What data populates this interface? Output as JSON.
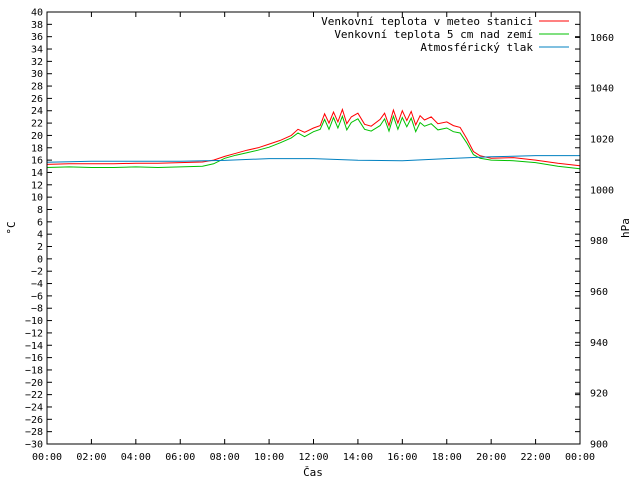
{
  "chart_data": {
    "type": "line",
    "xlabel": "Čas",
    "ylabel_left": "°C",
    "ylabel_right": "hPa",
    "x_ticks": [
      "00:00",
      "02:00",
      "04:00",
      "06:00",
      "08:00",
      "10:00",
      "12:00",
      "14:00",
      "16:00",
      "18:00",
      "20:00",
      "22:00",
      "00:00"
    ],
    "x_range_hours": [
      0,
      24
    ],
    "y_left_range": [
      -30,
      40
    ],
    "y_left_step": 2,
    "y_right_range": [
      900,
      1070
    ],
    "y_right_ticks": [
      900,
      920,
      940,
      960,
      980,
      1000,
      1020,
      1040,
      1060
    ],
    "grid": false,
    "legend_position": "top-right",
    "series": [
      {
        "name": "Venkovní teplota v meteo stanici",
        "color": "#ff0000",
        "axis": "left",
        "x_hours": [
          0,
          1,
          2,
          3,
          4,
          5,
          6,
          7,
          7.5,
          8,
          8.5,
          9,
          9.5,
          10,
          10.5,
          11,
          11.3,
          11.6,
          12,
          12.3,
          12.5,
          12.7,
          12.9,
          13.1,
          13.3,
          13.5,
          13.7,
          14,
          14.3,
          14.6,
          15,
          15.2,
          15.4,
          15.6,
          15.8,
          16,
          16.2,
          16.4,
          16.6,
          16.8,
          17,
          17.3,
          17.6,
          18,
          18.3,
          18.6,
          18.9,
          19.2,
          19.5,
          20,
          21,
          22,
          23,
          24
        ],
        "values": [
          15.3,
          15.4,
          15.4,
          15.4,
          15.5,
          15.5,
          15.6,
          15.7,
          16.0,
          16.6,
          17.1,
          17.6,
          18.0,
          18.6,
          19.2,
          20.0,
          21.0,
          20.5,
          21.2,
          21.6,
          23.5,
          22.0,
          23.8,
          22.2,
          24.2,
          21.9,
          23.0,
          23.6,
          21.8,
          21.5,
          22.6,
          23.6,
          21.6,
          24.1,
          22.0,
          24.0,
          22.4,
          23.9,
          21.7,
          23.2,
          22.5,
          23.0,
          21.9,
          22.2,
          21.6,
          21.3,
          19.5,
          17.4,
          16.7,
          16.3,
          16.4,
          16.0,
          15.5,
          15.1
        ]
      },
      {
        "name": "Venkovní teplota 5 cm nad zemí",
        "color": "#00c000",
        "axis": "left",
        "x_hours": [
          0,
          1,
          2,
          3,
          4,
          5,
          6,
          7,
          7.5,
          8,
          8.5,
          9,
          9.5,
          10,
          10.5,
          11,
          11.3,
          11.6,
          12,
          12.3,
          12.5,
          12.7,
          12.9,
          13.1,
          13.3,
          13.5,
          13.7,
          14,
          14.3,
          14.6,
          15,
          15.2,
          15.4,
          15.6,
          15.8,
          16,
          16.2,
          16.4,
          16.6,
          16.8,
          17,
          17.3,
          17.6,
          18,
          18.3,
          18.6,
          18.9,
          19.2,
          19.5,
          20,
          21,
          22,
          23,
          24
        ],
        "values": [
          14.8,
          14.9,
          14.8,
          14.8,
          14.9,
          14.8,
          14.9,
          15.0,
          15.4,
          16.3,
          16.8,
          17.2,
          17.6,
          18.1,
          18.8,
          19.6,
          20.4,
          19.8,
          20.6,
          21.0,
          22.6,
          21.0,
          22.9,
          21.2,
          23.1,
          20.9,
          22.1,
          22.7,
          21.0,
          20.7,
          21.6,
          22.7,
          20.7,
          23.1,
          21.0,
          22.9,
          21.4,
          22.8,
          20.6,
          22.1,
          21.5,
          21.9,
          20.9,
          21.2,
          20.6,
          20.4,
          18.8,
          16.9,
          16.3,
          16.0,
          15.9,
          15.6,
          15.0,
          14.6
        ]
      },
      {
        "name": "Atmosférický tlak",
        "color": "#0080c0",
        "axis": "right",
        "x_hours": [
          0,
          2,
          4,
          6,
          8,
          10,
          12,
          14,
          16,
          18,
          20,
          22,
          24
        ],
        "values": [
          1010.9,
          1011.3,
          1011.3,
          1011.3,
          1011.6,
          1012.3,
          1012.3,
          1011.7,
          1011.5,
          1012.3,
          1013.0,
          1013.5,
          1013.5
        ]
      }
    ]
  }
}
